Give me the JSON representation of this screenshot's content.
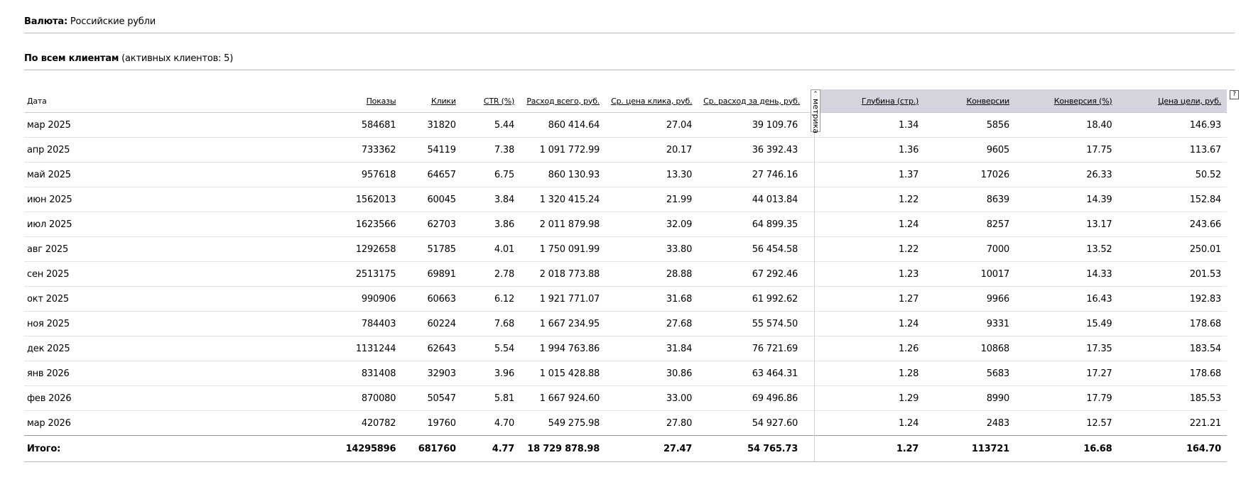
{
  "currency": {
    "label": "Валюта:",
    "value": "Российские рубли"
  },
  "clients": {
    "label": "По всем клиентам",
    "note": "(активных клиентов: 5)"
  },
  "columns": {
    "date": "Дата",
    "impressions": "Показы",
    "clicks": "Клики",
    "ctr": "CTR (%)",
    "spend": "Расход всего, руб.",
    "cpc": "Ср. цена клика, руб.",
    "daily": "Ср. расход за день, руб.",
    "depth": "Глубина (стр.)",
    "conversions": "Конверсии",
    "conv_rate": "Конверсия (%)",
    "goal_cost": "Цена цели, руб."
  },
  "metrika_tab": {
    "label": "метрика",
    "arrow_icon": "double-chevron-icon"
  },
  "help_icon": "?",
  "rows": [
    {
      "date": "мар 2025",
      "impressions": "584681",
      "clicks": "31820",
      "ctr": "5.44",
      "spend": "860 414.64",
      "cpc": "27.04",
      "daily": "39 109.76",
      "depth": "1.34",
      "conversions": "5856",
      "conv_rate": "18.40",
      "goal_cost": "146.93"
    },
    {
      "date": "апр 2025",
      "impressions": "733362",
      "clicks": "54119",
      "ctr": "7.38",
      "spend": "1 091 772.99",
      "cpc": "20.17",
      "daily": "36 392.43",
      "depth": "1.36",
      "conversions": "9605",
      "conv_rate": "17.75",
      "goal_cost": "113.67"
    },
    {
      "date": "май 2025",
      "impressions": "957618",
      "clicks": "64657",
      "ctr": "6.75",
      "spend": "860 130.93",
      "cpc": "13.30",
      "daily": "27 746.16",
      "depth": "1.37",
      "conversions": "17026",
      "conv_rate": "26.33",
      "goal_cost": "50.52"
    },
    {
      "date": "июн 2025",
      "impressions": "1562013",
      "clicks": "60045",
      "ctr": "3.84",
      "spend": "1 320 415.24",
      "cpc": "21.99",
      "daily": "44 013.84",
      "depth": "1.22",
      "conversions": "8639",
      "conv_rate": "14.39",
      "goal_cost": "152.84"
    },
    {
      "date": "июл 2025",
      "impressions": "1623566",
      "clicks": "62703",
      "ctr": "3.86",
      "spend": "2 011 879.98",
      "cpc": "32.09",
      "daily": "64 899.35",
      "depth": "1.24",
      "conversions": "8257",
      "conv_rate": "13.17",
      "goal_cost": "243.66"
    },
    {
      "date": "авг 2025",
      "impressions": "1292658",
      "clicks": "51785",
      "ctr": "4.01",
      "spend": "1 750 091.99",
      "cpc": "33.80",
      "daily": "56 454.58",
      "depth": "1.22",
      "conversions": "7000",
      "conv_rate": "13.52",
      "goal_cost": "250.01"
    },
    {
      "date": "сен 2025",
      "impressions": "2513175",
      "clicks": "69891",
      "ctr": "2.78",
      "spend": "2 018 773.88",
      "cpc": "28.88",
      "daily": "67 292.46",
      "depth": "1.23",
      "conversions": "10017",
      "conv_rate": "14.33",
      "goal_cost": "201.53"
    },
    {
      "date": "окт 2025",
      "impressions": "990906",
      "clicks": "60663",
      "ctr": "6.12",
      "spend": "1 921 771.07",
      "cpc": "31.68",
      "daily": "61 992.62",
      "depth": "1.27",
      "conversions": "9966",
      "conv_rate": "16.43",
      "goal_cost": "192.83"
    },
    {
      "date": "ноя 2025",
      "impressions": "784403",
      "clicks": "60224",
      "ctr": "7.68",
      "spend": "1 667 234.95",
      "cpc": "27.68",
      "daily": "55 574.50",
      "depth": "1.24",
      "conversions": "9331",
      "conv_rate": "15.49",
      "goal_cost": "178.68"
    },
    {
      "date": "дек 2025",
      "impressions": "1131244",
      "clicks": "62643",
      "ctr": "5.54",
      "spend": "1 994 763.86",
      "cpc": "31.84",
      "daily": "76 721.69",
      "depth": "1.26",
      "conversions": "10868",
      "conv_rate": "17.35",
      "goal_cost": "183.54"
    },
    {
      "date": "янв 2026",
      "impressions": "831408",
      "clicks": "32903",
      "ctr": "3.96",
      "spend": "1 015 428.88",
      "cpc": "30.86",
      "daily": "63 464.31",
      "depth": "1.28",
      "conversions": "5683",
      "conv_rate": "17.27",
      "goal_cost": "178.68"
    },
    {
      "date": "фев 2026",
      "impressions": "870080",
      "clicks": "50547",
      "ctr": "5.81",
      "spend": "1 667 924.60",
      "cpc": "33.00",
      "daily": "69 496.86",
      "depth": "1.29",
      "conversions": "8990",
      "conv_rate": "17.79",
      "goal_cost": "185.53"
    },
    {
      "date": "мар 2026",
      "impressions": "420782",
      "clicks": "19760",
      "ctr": "4.70",
      "spend": "549 275.98",
      "cpc": "27.80",
      "daily": "54 927.60",
      "depth": "1.24",
      "conversions": "2483",
      "conv_rate": "12.57",
      "goal_cost": "221.21"
    }
  ],
  "total": {
    "label": "Итого:",
    "impressions": "14295896",
    "clicks": "681760",
    "ctr": "4.77",
    "spend": "18 729 878.98",
    "cpc": "27.47",
    "daily": "54 765.73",
    "depth": "1.27",
    "conversions": "113721",
    "conv_rate": "16.68",
    "goal_cost": "164.70"
  },
  "colors": {
    "metrika_header_bg": "#d6d2de",
    "rule": "#b9b9b9"
  }
}
